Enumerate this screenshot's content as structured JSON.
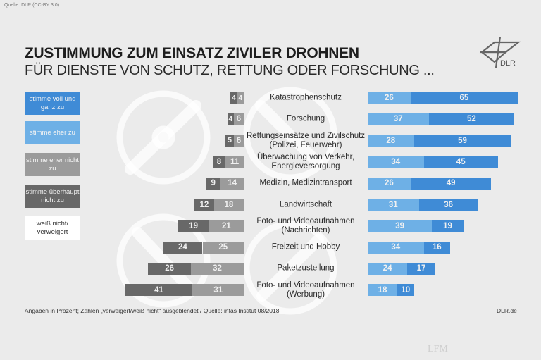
{
  "source_note": "Quelle: DLR (CC-BY 3.0)",
  "logo_text": "DLR",
  "footnote": "Angaben in Prozent; Zahlen „verweigert/weiß nicht“ ausgeblendet / Quelle: infas Institut 08/2018",
  "site": "DLR.de",
  "watermark": "LFM",
  "colors": {
    "stimme_voll": "#3f8bd6",
    "stimme_eher": "#6eb0e6",
    "eher_nicht": "#9b9b9b",
    "ueberhaupt_nicht": "#686868",
    "weiss_nicht": "#ffffff",
    "background": "#ebebeb"
  },
  "chart_data": {
    "type": "bar",
    "orientation": "horizontal-diverging",
    "stacked": true,
    "title": "ZUSTIMMUNG ZUM EINSATZ ZIVILER DROHNEN",
    "subtitle": "FÜR DIENSTE VON SCHUTZ, RETTUNG ODER FORSCHUNG ...",
    "legend_position": "left",
    "legend": [
      "stimme voll und ganz zu",
      "stimme eher zu",
      "stimme eher nicht zu",
      "stimme überhaupt nicht zu",
      "weiß nicht/ verweigert"
    ],
    "categories": [
      [
        "Katastrophenschutz"
      ],
      [
        "Forschung"
      ],
      [
        "Rettungseinsätze und Zivilschutz",
        "(Polizei, Feuerwehr)"
      ],
      [
        "Überwachung von Verkehr,",
        "Energieversorgung"
      ],
      [
        "Medizin, Medizintransport"
      ],
      [
        "Landwirtschaft"
      ],
      [
        "Foto- und Videoaufnahmen",
        "(Nachrichten)"
      ],
      [
        "Freizeit und Hobby"
      ],
      [
        "Paketzustellung"
      ],
      [
        "Foto- und Videoaufnahmen",
        "(Werbung)"
      ]
    ],
    "series": [
      {
        "name": "stimme voll und ganz zu",
        "side": "right",
        "values": [
          65,
          52,
          59,
          45,
          49,
          36,
          19,
          16,
          17,
          10
        ]
      },
      {
        "name": "stimme eher zu",
        "side": "right",
        "values": [
          26,
          37,
          28,
          34,
          26,
          31,
          39,
          34,
          24,
          18
        ]
      },
      {
        "name": "stimme eher nicht zu",
        "side": "left",
        "values": [
          4,
          6,
          6,
          11,
          14,
          18,
          21,
          25,
          32,
          31
        ]
      },
      {
        "name": "stimme überhaupt nicht zu",
        "side": "left",
        "values": [
          4,
          4,
          5,
          8,
          9,
          12,
          19,
          24,
          26,
          41
        ]
      }
    ],
    "unit": "Prozent"
  }
}
